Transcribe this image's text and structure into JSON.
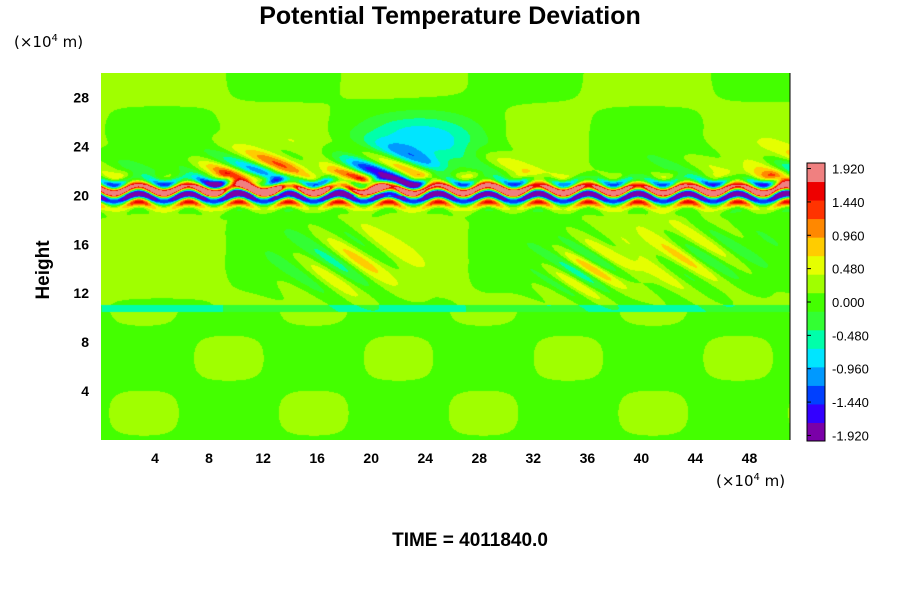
{
  "chart_data": {
    "type": "heatmap",
    "title": "Potential Temperature Deviation",
    "ylabel": "Height",
    "y_unit": {
      "prefix": "(×10",
      "exp": "4",
      "suffix": " m)"
    },
    "x_unit": {
      "prefix": "(×10",
      "exp": "4",
      "suffix": " m)"
    },
    "x_ticks": [
      "4",
      "8",
      "12",
      "16",
      "20",
      "24",
      "28",
      "32",
      "36",
      "40",
      "44",
      "48"
    ],
    "y_ticks": [
      "4",
      "8",
      "12",
      "16",
      "20",
      "24",
      "28"
    ],
    "xlim": [
      0,
      51
    ],
    "ylim": [
      0,
      30
    ],
    "colorbar_labels": [
      "1.920",
      "1.440",
      "0.960",
      "0.480",
      "0.000",
      "-0.480",
      "-0.960",
      "-1.440",
      "-1.920"
    ],
    "colorbar_range": [
      -2.0,
      2.0
    ],
    "colorbar_colors": [
      "#7a00a8",
      "#3300ff",
      "#0040ff",
      "#0099ff",
      "#00e5ff",
      "#00ffaa",
      "#33ff33",
      "#44ff00",
      "#a0ff00",
      "#e5ff00",
      "#ffcc00",
      "#ff8800",
      "#ff3300",
      "#ee0000",
      "#f08080"
    ],
    "field": {
      "background": "#33ff33",
      "band_center_height": 20.2,
      "tropopause_height": 10.5,
      "features": "wave packets above ~19 at x 8-52; strong alternating band around 19.5-20.5"
    },
    "time_label": "TIME = 4011840.0"
  }
}
